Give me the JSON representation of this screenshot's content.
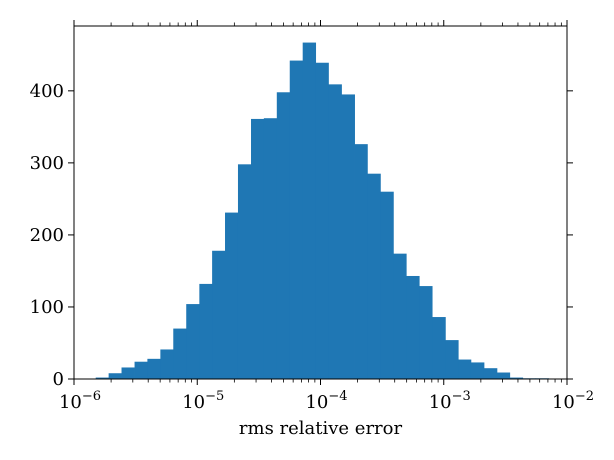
{
  "chart_data": {
    "type": "bar",
    "title": "",
    "xlabel": "rms relative error",
    "ylabel": "",
    "xscale": "log",
    "xlim": [
      1e-06,
      0.01
    ],
    "ylim": [
      0,
      490
    ],
    "grid": false,
    "legend": "none",
    "bar_color": "#1f77b4",
    "x_ticks": [
      {
        "value": 1e-06,
        "base": "10",
        "exp": "−6"
      },
      {
        "value": 1e-05,
        "base": "10",
        "exp": "−5"
      },
      {
        "value": 0.0001,
        "base": "10",
        "exp": "−4"
      },
      {
        "value": 0.001,
        "base": "10",
        "exp": "−3"
      },
      {
        "value": 0.01,
        "base": "10",
        "exp": "−2"
      }
    ],
    "y_ticks": [
      {
        "value": 0,
        "label": "0"
      },
      {
        "value": 100,
        "label": "100"
      },
      {
        "value": 200,
        "label": "200"
      },
      {
        "value": 300,
        "label": "300"
      },
      {
        "value": 400,
        "label": "400"
      }
    ],
    "bins": [
      {
        "x0": 1.5e-06,
        "x1": 1.91e-06,
        "count": 2
      },
      {
        "x0": 1.91e-06,
        "x1": 2.43e-06,
        "count": 8
      },
      {
        "x0": 2.43e-06,
        "x1": 3.1e-06,
        "count": 16
      },
      {
        "x0": 3.1e-06,
        "x1": 3.94e-06,
        "count": 24
      },
      {
        "x0": 3.94e-06,
        "x1": 5.02e-06,
        "count": 28
      },
      {
        "x0": 5.02e-06,
        "x1": 6.39e-06,
        "count": 41
      },
      {
        "x0": 6.39e-06,
        "x1": 8.14e-06,
        "count": 70
      },
      {
        "x0": 8.14e-06,
        "x1": 1.04e-05,
        "count": 104
      },
      {
        "x0": 1.04e-05,
        "x1": 1.32e-05,
        "count": 132
      },
      {
        "x0": 1.32e-05,
        "x1": 1.68e-05,
        "count": 178
      },
      {
        "x0": 1.68e-05,
        "x1": 2.14e-05,
        "count": 231
      },
      {
        "x0": 2.14e-05,
        "x1": 2.73e-05,
        "count": 298
      },
      {
        "x0": 2.73e-05,
        "x1": 3.47e-05,
        "count": 361
      },
      {
        "x0": 3.47e-05,
        "x1": 4.42e-05,
        "count": 362
      },
      {
        "x0": 4.42e-05,
        "x1": 5.63e-05,
        "count": 398
      },
      {
        "x0": 5.63e-05,
        "x1": 7.17e-05,
        "count": 442
      },
      {
        "x0": 7.17e-05,
        "x1": 9.13e-05,
        "count": 467
      },
      {
        "x0": 9.13e-05,
        "x1": 0.000116,
        "count": 439
      },
      {
        "x0": 0.000116,
        "x1": 0.000148,
        "count": 409
      },
      {
        "x0": 0.000148,
        "x1": 0.000189,
        "count": 395
      },
      {
        "x0": 0.000189,
        "x1": 0.00024,
        "count": 326
      },
      {
        "x0": 0.00024,
        "x1": 0.000306,
        "count": 285
      },
      {
        "x0": 0.000306,
        "x1": 0.00039,
        "count": 260
      },
      {
        "x0": 0.00039,
        "x1": 0.000496,
        "count": 174
      },
      {
        "x0": 0.000496,
        "x1": 0.000632,
        "count": 143
      },
      {
        "x0": 0.000632,
        "x1": 0.000805,
        "count": 129
      },
      {
        "x0": 0.000805,
        "x1": 0.00103,
        "count": 86
      },
      {
        "x0": 0.00103,
        "x1": 0.00131,
        "count": 54
      },
      {
        "x0": 0.00131,
        "x1": 0.00166,
        "count": 27
      },
      {
        "x0": 0.00166,
        "x1": 0.00212,
        "count": 23
      },
      {
        "x0": 0.00212,
        "x1": 0.0027,
        "count": 15
      },
      {
        "x0": 0.0027,
        "x1": 0.00343,
        "count": 9
      },
      {
        "x0": 0.00343,
        "x1": 0.00437,
        "count": 2
      },
      {
        "x0": 0.00437,
        "x1": 0.00557,
        "count": 1
      },
      {
        "x0": 0.00557,
        "x1": 0.0071,
        "count": 1
      }
    ]
  }
}
